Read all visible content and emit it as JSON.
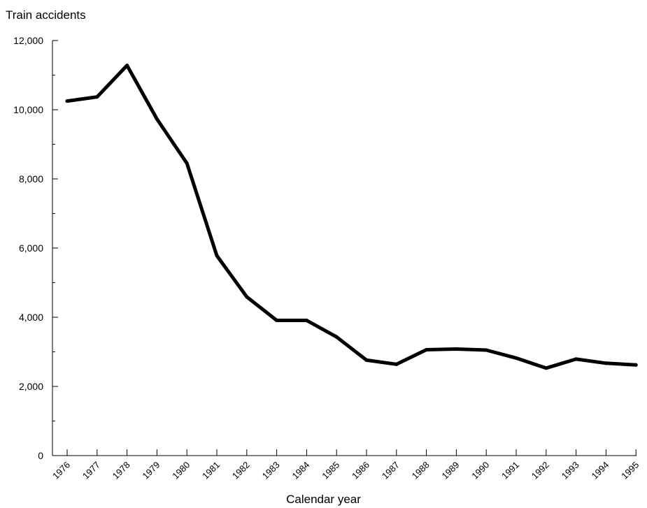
{
  "chart_data": {
    "type": "line",
    "ylabel": "Train accidents",
    "xlabel": "Calendar year",
    "ylim": [
      0,
      12000
    ],
    "yticks": [
      0,
      2000,
      4000,
      6000,
      8000,
      10000,
      12000
    ],
    "ytick_labels": [
      "0",
      "2,000",
      "4,000",
      "6,000",
      "8,000",
      "10,000",
      "12,000"
    ],
    "categories": [
      "1976",
      "1977",
      "1978",
      "1979",
      "1980",
      "1981",
      "1982",
      "1983",
      "1984",
      "1985",
      "1986",
      "1987",
      "1988",
      "1989",
      "1990",
      "1991",
      "1992",
      "1993",
      "1994",
      "1995"
    ],
    "series": [
      {
        "values": [
          10250,
          10370,
          11280,
          9730,
          8450,
          5780,
          4590,
          3910,
          3910,
          3430,
          2760,
          2640,
          3060,
          3080,
          3050,
          2820,
          2530,
          2790,
          2670,
          2620
        ],
        "color": "#000000"
      }
    ],
    "grid": false,
    "legend": "none"
  }
}
